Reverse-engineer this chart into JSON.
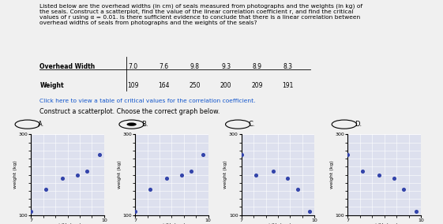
{
  "overhead_width": [
    7.0,
    7.6,
    9.8,
    9.3,
    8.9,
    8.3
  ],
  "weight": [
    109,
    164,
    250,
    200,
    209,
    191
  ],
  "xlabel": "width (cm)",
  "ylabel": "weight (kg)",
  "dot_color": "#3344aa",
  "panel_labels": [
    "A.",
    "B.",
    "C.",
    "D."
  ],
  "link_text": "Click here to view a table of critical values for the correlation coefficient.",
  "panel_A_x": [
    7.0,
    7.6,
    8.3,
    8.9,
    9.3,
    9.8
  ],
  "panel_A_y": [
    109,
    164,
    191,
    200,
    209,
    250
  ],
  "panel_B_x": [
    7.0,
    7.6,
    8.3,
    8.9,
    9.3,
    9.8
  ],
  "panel_B_y": [
    109,
    164,
    191,
    200,
    209,
    250
  ],
  "panel_C_x": [
    7.0,
    7.6,
    8.3,
    8.9,
    9.3,
    9.8
  ],
  "panel_C_y": [
    250,
    200,
    209,
    191,
    164,
    109
  ],
  "panel_D_x": [
    7.0,
    7.6,
    8.3,
    8.9,
    9.3,
    9.8
  ],
  "panel_D_y": [
    250,
    209,
    200,
    191,
    164,
    109
  ],
  "bg_color": "#f0f0f0",
  "plot_bg": "#dde0ee"
}
